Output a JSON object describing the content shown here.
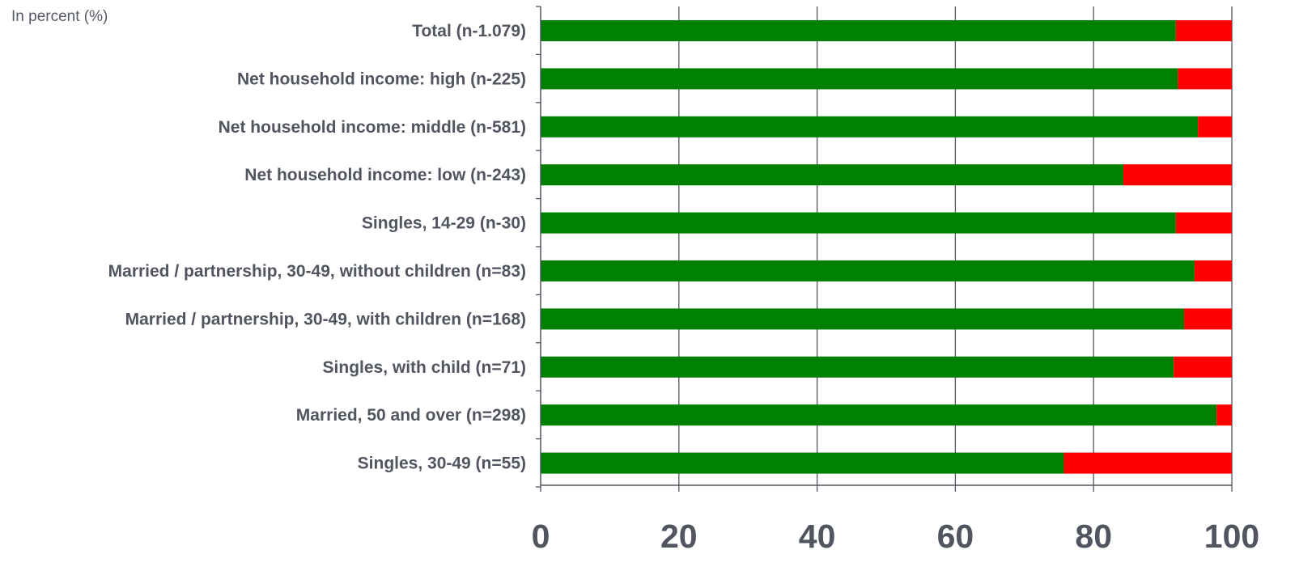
{
  "unit_note": "In percent (%)",
  "colors": {
    "green": "#008000",
    "red": "#ff0000",
    "grid": "#50555f",
    "text": "#50555f"
  },
  "chart_data": {
    "type": "bar",
    "orientation": "horizontal",
    "stacked": true,
    "categories": [
      "Total (n-1.079)",
      "Net household income: high (n-225)",
      "Net household income: middle (n-581)",
      "Net household income: low (n-243)",
      "Singles, 14-29 (n-30)",
      "Married / partnership, 30-49, without children (n=83)",
      "Married / partnership, 30-49, with children (n=168)",
      "Singles, with child (n=71)",
      "Married, 50 and over (n=298)",
      "Singles, 30-49 (n=55)"
    ],
    "series": [
      {
        "color": "#008000",
        "values": [
          91.9,
          92.2,
          95.1,
          84.3,
          91.9,
          94.6,
          93.1,
          91.6,
          97.8,
          75.7
        ]
      },
      {
        "color": "#ff0000",
        "values": [
          8.1,
          7.8,
          4.9,
          15.7,
          8.1,
          5.4,
          6.9,
          8.4,
          2.2,
          24.3
        ]
      }
    ],
    "xlim": [
      0,
      100
    ],
    "xticks": [
      0,
      20,
      40,
      60,
      80,
      100
    ],
    "grid": true,
    "title": "",
    "xlabel": "",
    "ylabel": ""
  }
}
